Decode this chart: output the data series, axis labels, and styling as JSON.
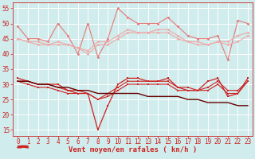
{
  "x": [
    0,
    1,
    2,
    3,
    4,
    5,
    6,
    7,
    8,
    9,
    10,
    11,
    12,
    13,
    14,
    15,
    16,
    17,
    18,
    19,
    20,
    21,
    22,
    23
  ],
  "series": [
    {
      "name": "rafales_high",
      "color": "#e87878",
      "lw": 0.8,
      "marker": "D",
      "ms": 1.8,
      "y": [
        49,
        45,
        45,
        44,
        50,
        46,
        40,
        50,
        39,
        45,
        55,
        52,
        50,
        50,
        50,
        52,
        49,
        46,
        45,
        45,
        46,
        38,
        51,
        50
      ]
    },
    {
      "name": "rafales_mid1",
      "color": "#f0a8a8",
      "lw": 0.8,
      "marker": "D",
      "ms": 1.8,
      "y": [
        45,
        44,
        44,
        43,
        44,
        43,
        42,
        41,
        44,
        44,
        46,
        48,
        47,
        47,
        48,
        48,
        46,
        44,
        44,
        43,
        44,
        44,
        46,
        47
      ]
    },
    {
      "name": "rafales_mid2",
      "color": "#f0a8a8",
      "lw": 0.8,
      "marker": "D",
      "ms": 1.8,
      "y": [
        45,
        44,
        43,
        43,
        43,
        43,
        42,
        40,
        43,
        43,
        45,
        47,
        47,
        47,
        47,
        47,
        45,
        44,
        43,
        43,
        44,
        43,
        44,
        46
      ]
    },
    {
      "name": "vent_high",
      "color": "#cc2222",
      "lw": 0.9,
      "marker": "s",
      "ms": 2.0,
      "y": [
        32,
        31,
        30,
        30,
        30,
        28,
        27,
        27,
        15,
        23,
        30,
        32,
        32,
        31,
        31,
        32,
        29,
        28,
        28,
        31,
        32,
        26,
        27,
        32
      ]
    },
    {
      "name": "vent_mid1",
      "color": "#cc2222",
      "lw": 0.8,
      "marker": "s",
      "ms": 1.6,
      "y": [
        31,
        31,
        30,
        30,
        29,
        28,
        28,
        27,
        25,
        27,
        29,
        31,
        31,
        31,
        31,
        31,
        29,
        29,
        28,
        29,
        31,
        28,
        28,
        31
      ]
    },
    {
      "name": "vent_mid2",
      "color": "#cc2222",
      "lw": 0.8,
      "marker": "s",
      "ms": 1.6,
      "y": [
        31,
        30,
        29,
        29,
        28,
        27,
        27,
        27,
        25,
        26,
        28,
        30,
        30,
        30,
        30,
        30,
        28,
        28,
        28,
        28,
        30,
        27,
        27,
        31
      ]
    },
    {
      "name": "vent_trend",
      "color": "#660000",
      "lw": 1.0,
      "marker": null,
      "ms": 0,
      "y": [
        31,
        31,
        30,
        30,
        29,
        29,
        28,
        28,
        27,
        27,
        27,
        27,
        27,
        26,
        26,
        26,
        26,
        25,
        25,
        24,
        24,
        24,
        23,
        23
      ]
    }
  ],
  "xlim": [
    -0.5,
    23.5
  ],
  "ylim": [
    13,
    57
  ],
  "yticks": [
    15,
    20,
    25,
    30,
    35,
    40,
    45,
    50,
    55
  ],
  "xticks": [
    0,
    1,
    2,
    3,
    4,
    5,
    6,
    7,
    8,
    9,
    10,
    11,
    12,
    13,
    14,
    15,
    16,
    17,
    18,
    19,
    20,
    21,
    22,
    23
  ],
  "xlabel": "Vent moyen/en rafales ( kn/h )",
  "bg_color": "#d0ecec",
  "grid_color": "#ffffff",
  "axis_color": "#cc2222",
  "text_color": "#cc2222",
  "label_fontsize": 6.5,
  "tick_fontsize": 5.5,
  "arrow_angles_deg": [
    45,
    45,
    45,
    45,
    45,
    45,
    45,
    45,
    0,
    0,
    0,
    0,
    0,
    0,
    0,
    0,
    0,
    0,
    0,
    45,
    45,
    45,
    45,
    45
  ]
}
